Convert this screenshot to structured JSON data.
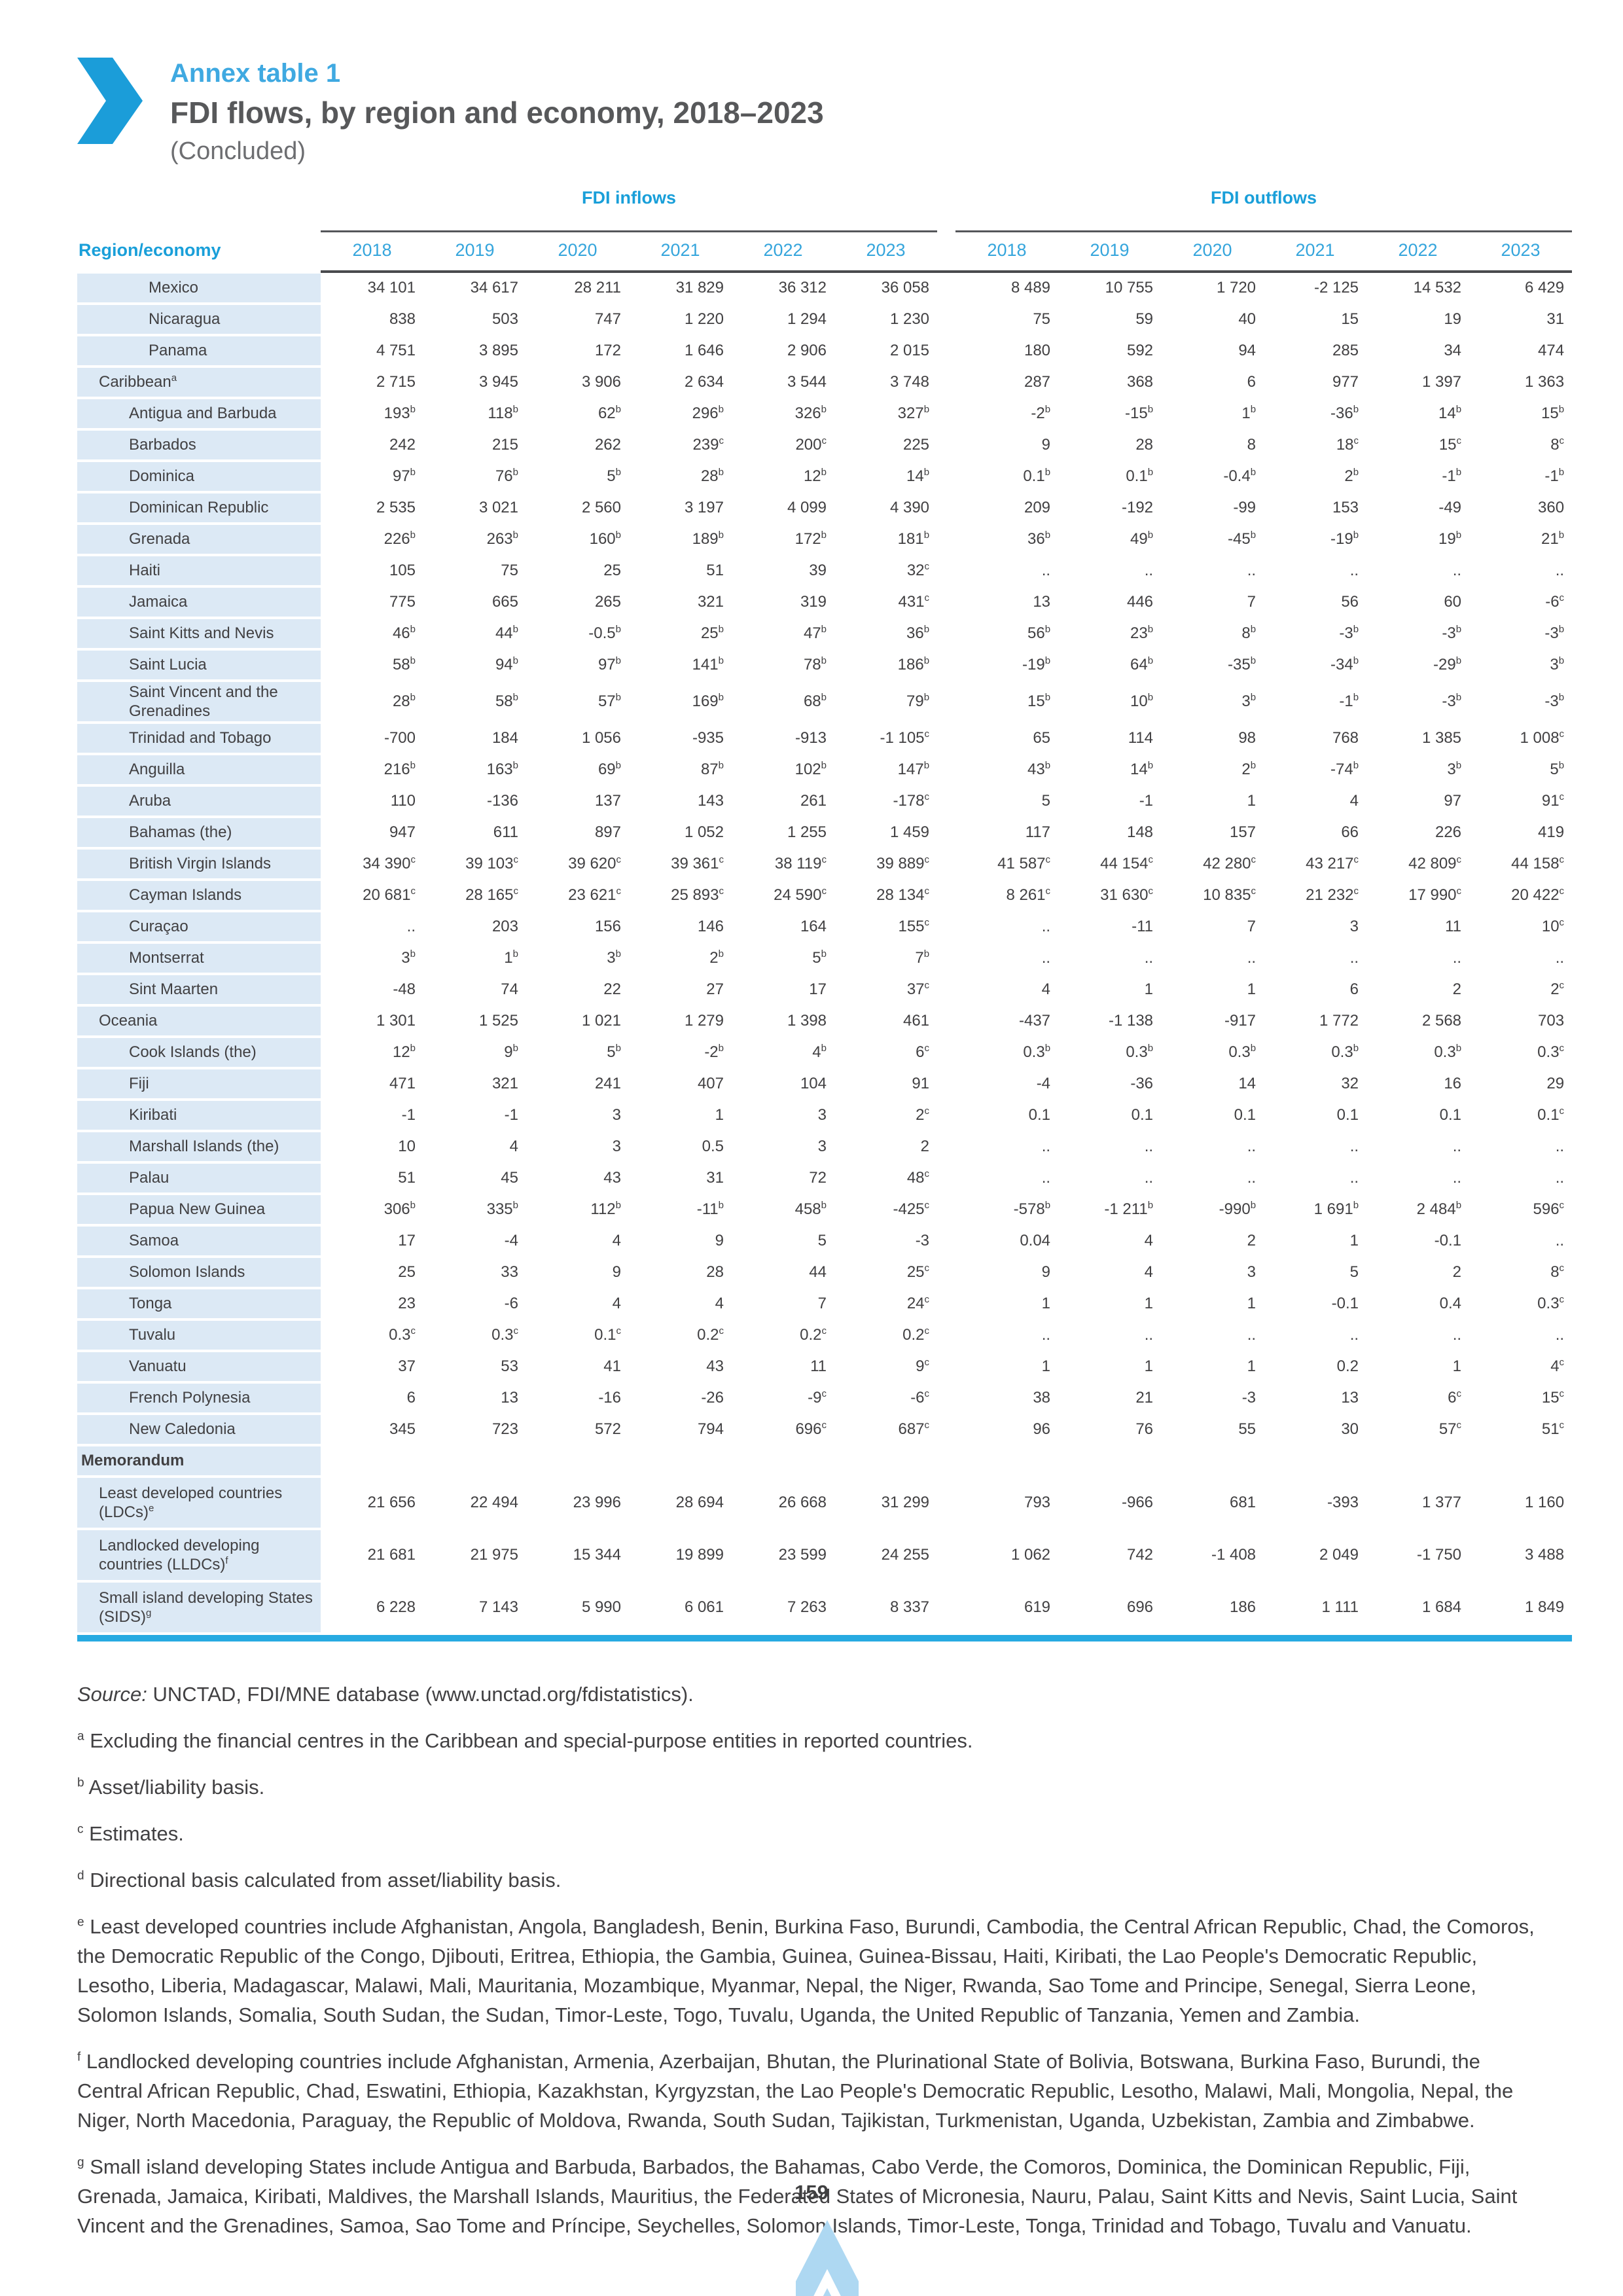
{
  "header": {
    "annex_label": "Annex table 1",
    "title": "FDI flows, by region and economy, 2018–2023",
    "subtitle": "(Concluded)"
  },
  "table": {
    "region_col_header": "Region/economy",
    "groups": [
      {
        "label": "FDI inflows",
        "years": [
          "2018",
          "2019",
          "2020",
          "2021",
          "2022",
          "2023"
        ]
      },
      {
        "label": "FDI outflows",
        "years": [
          "2018",
          "2019",
          "2020",
          "2021",
          "2022",
          "2023"
        ]
      }
    ],
    "rows": [
      {
        "label": "Mexico",
        "level": 3,
        "bold": false,
        "in": [
          "34 101",
          "34 617",
          "28 211",
          "31 829",
          "36 312",
          "36 058"
        ],
        "out": [
          "8 489",
          "10 755",
          "1 720",
          "-2 125",
          "14 532",
          "6 429"
        ]
      },
      {
        "label": "Nicaragua",
        "level": 3,
        "bold": false,
        "in": [
          "838",
          "503",
          "747",
          "1 220",
          "1 294",
          "1 230"
        ],
        "out": [
          "75",
          "59",
          "40",
          "15",
          "19",
          "31"
        ]
      },
      {
        "label": "Panama",
        "level": 3,
        "bold": false,
        "in": [
          "4 751",
          "3 895",
          "172",
          "1 646",
          "2 906",
          "2 015"
        ],
        "out": [
          "180",
          "592",
          "94",
          "285",
          "34",
          "474"
        ]
      },
      {
        "label": "Caribbean^a",
        "level": 1,
        "bold": false,
        "in": [
          "2 715",
          "3 945",
          "3 906",
          "2 634",
          "3 544",
          "3 748"
        ],
        "out": [
          "287",
          "368",
          "6",
          "977",
          "1 397",
          "1 363"
        ]
      },
      {
        "label": "Antigua and Barbuda",
        "level": 2,
        "bold": false,
        "in": [
          "193^b",
          "118^b",
          "62^b",
          "296^b",
          "326^b",
          "327^b"
        ],
        "out": [
          "-2^b",
          "-15^b",
          "1^b",
          "-36^b",
          "14^b",
          "15^b"
        ]
      },
      {
        "label": "Barbados",
        "level": 2,
        "bold": false,
        "in": [
          "242",
          "215",
          "262",
          "239^c",
          "200^c",
          "225"
        ],
        "out": [
          "9",
          "28",
          "8",
          "18^c",
          "15^c",
          "8^c"
        ]
      },
      {
        "label": "Dominica",
        "level": 2,
        "bold": false,
        "in": [
          "97^b",
          "76^b",
          "5^b",
          "28^b",
          "12^b",
          "14^b"
        ],
        "out": [
          "0.1^b",
          "0.1^b",
          "-0.4^b",
          "2^b",
          "-1^b",
          "-1^b"
        ]
      },
      {
        "label": "Dominican Republic",
        "level": 2,
        "bold": false,
        "in": [
          "2 535",
          "3 021",
          "2 560",
          "3 197",
          "4 099",
          "4 390"
        ],
        "out": [
          "209",
          "-192",
          "-99",
          "153",
          "-49",
          "360"
        ]
      },
      {
        "label": "Grenada",
        "level": 2,
        "bold": false,
        "in": [
          "226^b",
          "263^b",
          "160^b",
          "189^b",
          "172^b",
          "181^b"
        ],
        "out": [
          "36^b",
          "49^b",
          "-45^b",
          "-19^b",
          "19^b",
          "21^b"
        ]
      },
      {
        "label": "Haiti",
        "level": 2,
        "bold": false,
        "in": [
          "105",
          "75",
          "25",
          "51",
          "39",
          "32^c"
        ],
        "out": [
          "..",
          "..",
          "..",
          "..",
          "..",
          ".."
        ]
      },
      {
        "label": "Jamaica",
        "level": 2,
        "bold": false,
        "in": [
          "775",
          "665",
          "265",
          "321",
          "319",
          "431^c"
        ],
        "out": [
          "13",
          "446",
          "7",
          "56",
          "60",
          "-6^c"
        ]
      },
      {
        "label": "Saint Kitts and Nevis",
        "level": 2,
        "bold": false,
        "in": [
          "46^b",
          "44^b",
          "-0.5^b",
          "25^b",
          "47^b",
          "36^b"
        ],
        "out": [
          "56^b",
          "23^b",
          "8^b",
          "-3^b",
          "-3^b",
          "-3^b"
        ]
      },
      {
        "label": "Saint Lucia",
        "level": 2,
        "bold": false,
        "in": [
          "58^b",
          "94^b",
          "97^b",
          "141^b",
          "78^b",
          "186^b"
        ],
        "out": [
          "-19^b",
          "64^b",
          "-35^b",
          "-34^b",
          "-29^b",
          "3^b"
        ]
      },
      {
        "label": "Saint Vincent and the Grenadines",
        "level": 2,
        "bold": false,
        "in": [
          "28^b",
          "58^b",
          "57^b",
          "169^b",
          "68^b",
          "79^b"
        ],
        "out": [
          "15^b",
          "10^b",
          "3^b",
          "-1^b",
          "-3^b",
          "-3^b"
        ]
      },
      {
        "label": "Trinidad and Tobago",
        "level": 2,
        "bold": false,
        "in": [
          "-700",
          "184",
          "1 056",
          "-935",
          "-913",
          "-1 105^c"
        ],
        "out": [
          "65",
          "114",
          "98",
          "768",
          "1 385",
          "1 008^c"
        ]
      },
      {
        "label": "Anguilla",
        "level": 2,
        "bold": false,
        "in": [
          "216^b",
          "163^b",
          "69^b",
          "87^b",
          "102^b",
          "147^b"
        ],
        "out": [
          "43^b",
          "14^b",
          "2^b",
          "-74^b",
          "3^b",
          "5^b"
        ]
      },
      {
        "label": "Aruba",
        "level": 2,
        "bold": false,
        "in": [
          "110",
          "-136",
          "137",
          "143",
          "261",
          "-178^c"
        ],
        "out": [
          "5",
          "-1",
          "1",
          "4",
          "97",
          "91^c"
        ]
      },
      {
        "label": "Bahamas (the)",
        "level": 2,
        "bold": false,
        "in": [
          "947",
          "611",
          "897",
          "1 052",
          "1 255",
          "1 459"
        ],
        "out": [
          "117",
          "148",
          "157",
          "66",
          "226",
          "419"
        ]
      },
      {
        "label": "British Virgin Islands",
        "level": 2,
        "bold": false,
        "in": [
          "34 390^c",
          "39 103^c",
          "39 620^c",
          "39 361^c",
          "38 119^c",
          "39 889^c"
        ],
        "out": [
          "41 587^c",
          "44 154^c",
          "42 280^c",
          "43 217^c",
          "42 809^c",
          "44 158^c"
        ]
      },
      {
        "label": "Cayman Islands",
        "level": 2,
        "bold": false,
        "in": [
          "20 681^c",
          "28 165^c",
          "23 621^c",
          "25 893^c",
          "24 590^c",
          "28 134^c"
        ],
        "out": [
          "8 261^c",
          "31 630^c",
          "10 835^c",
          "21 232^c",
          "17 990^c",
          "20 422^c"
        ]
      },
      {
        "label": "Curaçao",
        "level": 2,
        "bold": false,
        "in": [
          "..",
          "203",
          "156",
          "146",
          "164",
          "155^c"
        ],
        "out": [
          "..",
          "-11",
          "7",
          "3",
          "11",
          "10^c"
        ]
      },
      {
        "label": "Montserrat",
        "level": 2,
        "bold": false,
        "in": [
          "3^b",
          "1^b",
          "3^b",
          "2^b",
          "5^b",
          "7^b"
        ],
        "out": [
          "..",
          "..",
          "..",
          "..",
          "..",
          ".."
        ]
      },
      {
        "label": "Sint Maarten",
        "level": 2,
        "bold": false,
        "in": [
          "-48",
          "74",
          "22",
          "27",
          "17",
          "37^c"
        ],
        "out": [
          "4",
          "1",
          "1",
          "6",
          "2",
          "2^c"
        ]
      },
      {
        "label": "Oceania",
        "level": 1,
        "bold": false,
        "in": [
          "1 301",
          "1 525",
          "1 021",
          "1 279",
          "1 398",
          "461"
        ],
        "out": [
          "-437",
          "-1 138",
          "-917",
          "1 772",
          "2 568",
          "703"
        ]
      },
      {
        "label": "Cook Islands (the)",
        "level": 2,
        "bold": false,
        "in": [
          "12^b",
          "9^b",
          "5^b",
          "-2^b",
          "4^b",
          "6^c"
        ],
        "out": [
          "0.3^b",
          "0.3^b",
          "0.3^b",
          "0.3^b",
          "0.3^b",
          "0.3^c"
        ]
      },
      {
        "label": "Fiji",
        "level": 2,
        "bold": false,
        "in": [
          "471",
          "321",
          "241",
          "407",
          "104",
          "91"
        ],
        "out": [
          "-4",
          "-36",
          "14",
          "32",
          "16",
          "29"
        ]
      },
      {
        "label": "Kiribati",
        "level": 2,
        "bold": false,
        "in": [
          "-1",
          "-1",
          "3",
          "1",
          "3",
          "2^c"
        ],
        "out": [
          "0.1",
          "0.1",
          "0.1",
          "0.1",
          "0.1",
          "0.1^c"
        ]
      },
      {
        "label": "Marshall Islands (the)",
        "level": 2,
        "bold": false,
        "in": [
          "10",
          "4",
          "3",
          "0.5",
          "3",
          "2"
        ],
        "out": [
          "..",
          "..",
          "..",
          "..",
          "..",
          ".."
        ]
      },
      {
        "label": "Palau",
        "level": 2,
        "bold": false,
        "in": [
          "51",
          "45",
          "43",
          "31",
          "72",
          "48^c"
        ],
        "out": [
          "..",
          "..",
          "..",
          "..",
          "..",
          ".."
        ]
      },
      {
        "label": "Papua New Guinea",
        "level": 2,
        "bold": false,
        "in": [
          "306^b",
          "335^b",
          "112^b",
          "-11^b",
          "458^b",
          "-425^c"
        ],
        "out": [
          "-578^b",
          "-1 211^b",
          "-990^b",
          "1 691^b",
          "2 484^b",
          "596^c"
        ]
      },
      {
        "label": "Samoa",
        "level": 2,
        "bold": false,
        "in": [
          "17",
          "-4",
          "4",
          "9",
          "5",
          "-3"
        ],
        "out": [
          "0.04",
          "4",
          "2",
          "1",
          "-0.1",
          ".."
        ]
      },
      {
        "label": "Solomon Islands",
        "level": 2,
        "bold": false,
        "in": [
          "25",
          "33",
          "9",
          "28",
          "44",
          "25^c"
        ],
        "out": [
          "9",
          "4",
          "3",
          "5",
          "2",
          "8^c"
        ]
      },
      {
        "label": "Tonga",
        "level": 2,
        "bold": false,
        "in": [
          "23",
          "-6",
          "4",
          "4",
          "7",
          "24^c"
        ],
        "out": [
          "1",
          "1",
          "1",
          "-0.1",
          "0.4",
          "0.3^c"
        ]
      },
      {
        "label": "Tuvalu",
        "level": 2,
        "bold": false,
        "in": [
          "0.3^c",
          "0.3^c",
          "0.1^c",
          "0.2^c",
          "0.2^c",
          "0.2^c"
        ],
        "out": [
          "..",
          "..",
          "..",
          "..",
          "..",
          ".."
        ]
      },
      {
        "label": "Vanuatu",
        "level": 2,
        "bold": false,
        "in": [
          "37",
          "53",
          "41",
          "43",
          "11",
          "9^c"
        ],
        "out": [
          "1",
          "1",
          "1",
          "0.2",
          "1",
          "4^c"
        ]
      },
      {
        "label": "French Polynesia",
        "level": 2,
        "bold": false,
        "in": [
          "6",
          "13",
          "-16",
          "-26",
          "-9^c",
          "-6^c"
        ],
        "out": [
          "38",
          "21",
          "-3",
          "13",
          "6^c",
          "15^c"
        ]
      },
      {
        "label": "New Caledonia",
        "level": 2,
        "bold": false,
        "in": [
          "345",
          "723",
          "572",
          "794",
          "696^c",
          "687^c"
        ],
        "out": [
          "96",
          "76",
          "55",
          "30",
          "57^c",
          "51^c"
        ]
      },
      {
        "label": "Memorandum",
        "level": 0,
        "bold": true,
        "in": [
          "",
          "",
          "",
          "",
          "",
          ""
        ],
        "out": [
          "",
          "",
          "",
          "",
          "",
          ""
        ]
      },
      {
        "label": "Least developed countries (LDCs)^e",
        "level": 1,
        "bold": false,
        "cls": "memo",
        "in": [
          "21 656",
          "22 494",
          "23 996",
          "28 694",
          "26 668",
          "31 299"
        ],
        "out": [
          "793",
          "-966",
          "681",
          "-393",
          "1 377",
          "1 160"
        ]
      },
      {
        "label": "Landlocked developing countries (LLDCs)^f",
        "level": 1,
        "bold": false,
        "cls": "memo",
        "in": [
          "21 681",
          "21 975",
          "15 344",
          "19 899",
          "23 599",
          "24 255"
        ],
        "out": [
          "1 062",
          "742",
          "-1 408",
          "2 049",
          "-1 750",
          "3 488"
        ]
      },
      {
        "label": "Small island developing States (SIDS)^g",
        "level": 1,
        "bold": false,
        "cls": "memo",
        "in": [
          "6 228",
          "7 143",
          "5 990",
          "6 061",
          "7 263",
          "8 337"
        ],
        "out": [
          "619",
          "696",
          "186",
          "1 111",
          "1 684",
          "1 849"
        ]
      }
    ]
  },
  "source": {
    "prefix": "Source:",
    "text": " UNCTAD, FDI/MNE database (www.unctad.org/fdistatistics)."
  },
  "footnotes": [
    {
      "mark": "a",
      "text": "Excluding the financial centres in the Caribbean and special-purpose entities in reported countries."
    },
    {
      "mark": "b",
      "text": "Asset/liability basis."
    },
    {
      "mark": "c",
      "text": "Estimates."
    },
    {
      "mark": "d",
      "text": "Directional basis calculated from asset/liability basis."
    },
    {
      "mark": "e",
      "text": "Least developed countries include Afghanistan, Angola, Bangladesh, Benin, Burkina Faso, Burundi, Cambodia, the Central African Republic, Chad, the Comoros, the Democratic Republic of the Congo, Djibouti, Eritrea, Ethiopia, the Gambia, Guinea, Guinea-Bissau, Haiti, Kiribati, the Lao People's Democratic Republic, Lesotho, Liberia, Madagascar, Malawi, Mali, Mauritania, Mozambique, Myanmar, Nepal, the Niger, Rwanda, Sao Tome and Principe, Senegal, Sierra Leone, Solomon Islands, Somalia, South Sudan, the Sudan, Timor-Leste, Togo, Tuvalu, Uganda, the United Republic of Tanzania, Yemen and Zambia."
    },
    {
      "mark": "f",
      "text": "Landlocked developing countries include Afghanistan, Armenia, Azerbaijan, Bhutan, the Plurinational State of Bolivia, Botswana, Burkina Faso, Burundi, the Central African Republic, Chad, Eswatini, Ethiopia, Kazakhstan, Kyrgyzstan, the Lao People's Democratic Republic, Lesotho, Malawi, Mali, Mongolia, Nepal, the Niger, North Macedonia, Paraguay, the Republic of Moldova, Rwanda, South Sudan, Tajikistan, Turkmenistan, Uganda, Uzbekistan, Zambia and Zimbabwe."
    },
    {
      "mark": "g",
      "text": "Small island developing States include Antigua and Barbuda, Barbados, the Bahamas, Cabo Verde, the Comoros, Dominica, the Dominican Republic, Fiji, Grenada, Jamaica, Kiribati, Maldives, the Marshall Islands, Mauritius, the Federated States of Micronesia, Nauru, Palau, Saint Kitts and Nevis, Saint Lucia, Saint Vincent and the Grenadines, Samoa, Sao Tome and Príncipe, Seychelles, Solomon Islands, Timor-Leste, Tonga, Trinidad and Tobago, Tuvalu and Vanuatu."
    }
  ],
  "page_number": "159",
  "colors": {
    "accent_blue": "#199fd9",
    "annex_blue": "#3fa9e1",
    "row_bg": "#dce9f5",
    "cyan_rule": "#27aae1",
    "text": "#414042"
  }
}
